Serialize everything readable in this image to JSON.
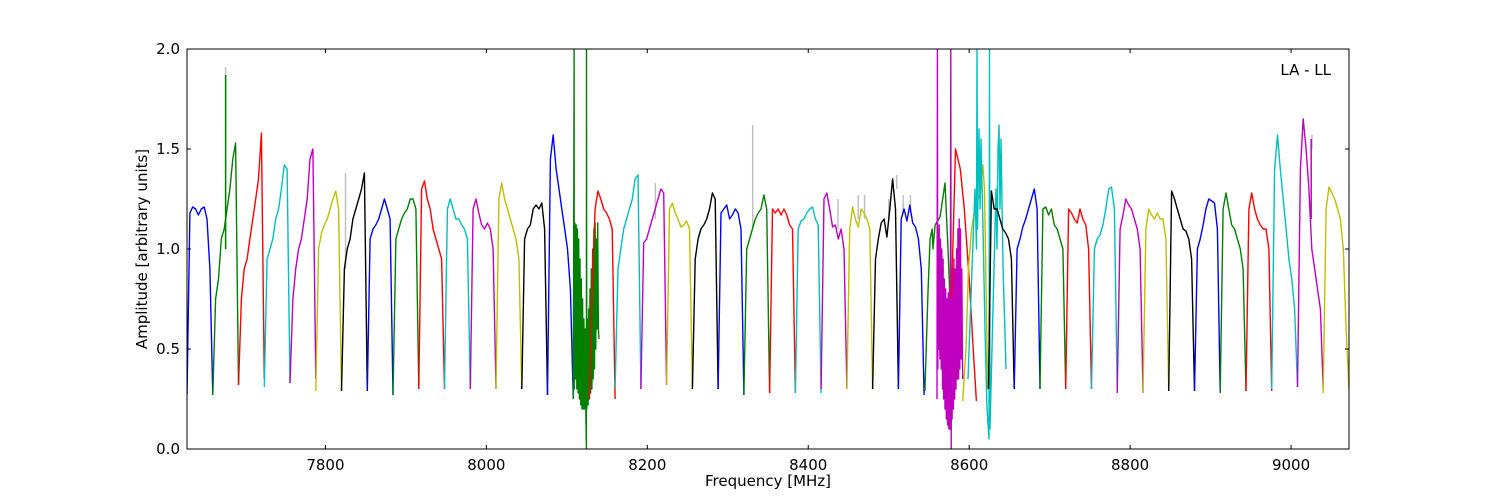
{
  "chart_data": {
    "type": "line",
    "title": "",
    "xlabel": "Frequency [MHz]",
    "ylabel": "Amplitude [arbitrary units]",
    "annotation": "LA - LL",
    "xlim": [
      7628,
      9072
    ],
    "ylim": [
      0.0,
      2.0
    ],
    "xticks": [
      7800,
      8000,
      8200,
      8400,
      8600,
      8800,
      9000
    ],
    "xtick_labels": [
      "7800",
      "8000",
      "8200",
      "8400",
      "8600",
      "8800",
      "9000"
    ],
    "yticks": [
      0.0,
      0.5,
      1.0,
      1.5,
      2.0
    ],
    "ytick_labels": [
      "0.0",
      "0.5",
      "1.0",
      "1.5",
      "2.0"
    ],
    "grid": false,
    "legend": "none",
    "subband_width_mhz": 32,
    "colors": {
      "b": "#0000ff",
      "g": "#008000",
      "r": "#ff0000",
      "c": "#00bfbf",
      "m": "#bf00bf",
      "y": "#bfbf00",
      "k": "#000000",
      "gray": "#c0c0c0"
    },
    "spikes": [
      {
        "freq": 7676,
        "from": 1.0,
        "to": 1.91,
        "color": "gray"
      },
      {
        "freq": 7676,
        "from": 1.0,
        "to": 1.87,
        "color": "g"
      },
      {
        "freq": 7825,
        "from": 0.9,
        "to": 1.38,
        "color": "gray"
      },
      {
        "freq": 8210,
        "from": 1.15,
        "to": 1.33,
        "color": "gray"
      },
      {
        "freq": 8331,
        "from": 1.1,
        "to": 1.62,
        "color": "gray"
      },
      {
        "freq": 8437,
        "from": 1.1,
        "to": 1.25,
        "color": "gray"
      },
      {
        "freq": 8462,
        "from": 1.15,
        "to": 1.27,
        "color": "gray"
      },
      {
        "freq": 8470,
        "from": 1.15,
        "to": 1.27,
        "color": "gray"
      },
      {
        "freq": 8500,
        "from": 1.15,
        "to": 1.25,
        "color": "gray"
      },
      {
        "freq": 8510,
        "from": 1.3,
        "to": 1.37,
        "color": "gray"
      },
      {
        "freq": 8518,
        "from": 1.18,
        "to": 1.27,
        "color": "gray"
      },
      {
        "freq": 8527,
        "from": 1.18,
        "to": 1.27,
        "color": "gray"
      },
      {
        "freq": 9026,
        "from": 1.5,
        "to": 1.57,
        "color": "gray"
      },
      {
        "freq": 9025,
        "from": 1.15,
        "to": 1.55,
        "color": "m"
      }
    ],
    "series": [
      {
        "color": "b",
        "start": 7628,
        "y": [
          0.27,
          1.18,
          1.21,
          1.2,
          1.17,
          1.2,
          1.21,
          1.15,
          0.9,
          0.27
        ]
      },
      {
        "color": "g",
        "start": 7660,
        "y": [
          0.27,
          0.75,
          0.85,
          1.05,
          1.1,
          1.2,
          1.3,
          1.45,
          1.53,
          0.32
        ]
      },
      {
        "color": "r",
        "start": 7692,
        "y": [
          0.32,
          0.75,
          0.9,
          0.95,
          1.05,
          1.15,
          1.25,
          1.35,
          1.58,
          0.35
        ]
      },
      {
        "color": "c",
        "start": 7724,
        "y": [
          0.31,
          0.95,
          1.0,
          1.05,
          1.15,
          1.2,
          1.3,
          1.42,
          1.4,
          0.33
        ]
      },
      {
        "color": "m",
        "start": 7756,
        "y": [
          0.33,
          0.75,
          0.9,
          1.0,
          1.05,
          1.15,
          1.25,
          1.45,
          1.5,
          0.35
        ]
      },
      {
        "color": "y",
        "start": 7788,
        "y": [
          0.29,
          1.0,
          1.08,
          1.12,
          1.15,
          1.2,
          1.25,
          1.29,
          1.2,
          0.29
        ]
      },
      {
        "color": "k",
        "start": 7820,
        "y": [
          0.29,
          0.9,
          1.0,
          1.05,
          1.15,
          1.2,
          1.25,
          1.3,
          1.38,
          0.29
        ]
      },
      {
        "color": "b",
        "start": 7852,
        "y": [
          0.29,
          1.05,
          1.1,
          1.12,
          1.15,
          1.2,
          1.25,
          1.2,
          1.15,
          0.27
        ]
      },
      {
        "color": "g",
        "start": 7884,
        "y": [
          0.27,
          1.05,
          1.1,
          1.15,
          1.18,
          1.2,
          1.25,
          1.25,
          1.2,
          0.3
        ]
      },
      {
        "color": "r",
        "start": 7916,
        "y": [
          0.3,
          1.3,
          1.34,
          1.25,
          1.2,
          1.1,
          1.05,
          1.0,
          0.95,
          0.3
        ]
      },
      {
        "color": "c",
        "start": 7948,
        "y": [
          0.3,
          1.2,
          1.25,
          1.2,
          1.15,
          1.15,
          1.12,
          1.1,
          1.05,
          0.3
        ]
      },
      {
        "color": "m",
        "start": 7980,
        "y": [
          0.3,
          1.2,
          1.25,
          1.18,
          1.12,
          1.1,
          1.13,
          1.1,
          1.0,
          0.3
        ]
      },
      {
        "color": "y",
        "start": 8012,
        "y": [
          0.3,
          1.25,
          1.33,
          1.25,
          1.2,
          1.15,
          1.1,
          1.05,
          0.95,
          0.3
        ]
      },
      {
        "color": "k",
        "start": 8044,
        "y": [
          0.3,
          1.05,
          1.1,
          1.12,
          1.2,
          1.22,
          1.2,
          1.23,
          1.1,
          0.27
        ]
      },
      {
        "color": "b",
        "start": 8076,
        "y": [
          0.27,
          1.45,
          1.57,
          1.4,
          1.3,
          1.2,
          1.1,
          1.0,
          0.8,
          0.25
        ]
      },
      {
        "color": "g",
        "x": [
          8108,
          8108.6,
          8109,
          8109.3,
          8110,
          8110.8,
          8111.6,
          8112.4,
          8113.2,
          8114,
          8114.8,
          8115.6,
          8116.4,
          8117.2,
          8118,
          8118.8,
          8119.6,
          8120.4,
          8121.2,
          8122,
          8122.8,
          8123.6,
          8124.3,
          8124.5,
          8124.8,
          8125.6,
          8126.4,
          8127.2,
          8128,
          8128.8,
          8129.6,
          8130.4,
          8131.2,
          8132,
          8132.8,
          8133.6,
          8134.4,
          8135.2,
          8136,
          8136.8,
          8137.6,
          8138.4,
          8139.2,
          8140
        ],
        "y": [
          0.25,
          1.1,
          2.0,
          0.3,
          1.13,
          0.35,
          1.12,
          0.3,
          1.1,
          0.28,
          1.05,
          0.25,
          0.95,
          0.22,
          0.85,
          0.2,
          0.75,
          0.2,
          0.65,
          0.2,
          0.6,
          0.2,
          0.0,
          2.0,
          0.2,
          0.65,
          0.22,
          0.7,
          0.25,
          0.8,
          0.28,
          0.9,
          0.3,
          1.0,
          0.35,
          1.1,
          0.4,
          1.13,
          0.5,
          1.05,
          0.6,
          1.13,
          0.6,
          0.55
        ]
      },
      {
        "color": "r",
        "start": 8128,
        "y": [
          0.25,
          0.8,
          1.2,
          1.29,
          1.25,
          1.2,
          1.18,
          1.15,
          1.1,
          0.25
        ]
      },
      {
        "color": "c",
        "start": 8160,
        "y": [
          0.31,
          0.9,
          1.0,
          1.1,
          1.15,
          1.2,
          1.25,
          1.35,
          1.37,
          0.3
        ]
      },
      {
        "color": "m",
        "start": 8192,
        "y": [
          0.3,
          1.03,
          1.05,
          1.1,
          1.15,
          1.2,
          1.25,
          1.3,
          1.28,
          0.32
        ]
      },
      {
        "color": "y",
        "start": 8224,
        "y": [
          0.32,
          1.2,
          1.23,
          1.18,
          1.15,
          1.11,
          1.12,
          1.14,
          1.1,
          0.3
        ]
      },
      {
        "color": "k",
        "start": 8256,
        "y": [
          0.3,
          0.95,
          1.05,
          1.1,
          1.12,
          1.15,
          1.2,
          1.28,
          1.25,
          0.3
        ]
      },
      {
        "color": "b",
        "start": 8288,
        "y": [
          0.3,
          1.18,
          1.2,
          1.22,
          1.15,
          1.17,
          1.2,
          1.18,
          1.1,
          0.27
        ]
      },
      {
        "color": "g",
        "start": 8320,
        "y": [
          0.27,
          1.0,
          1.05,
          1.1,
          1.15,
          1.18,
          1.2,
          1.27,
          1.2,
          0.28
        ]
      },
      {
        "color": "r",
        "start": 8352,
        "y": [
          0.28,
          1.2,
          1.18,
          1.2,
          1.17,
          1.2,
          1.17,
          1.12,
          1.1,
          0.28
        ]
      },
      {
        "color": "c",
        "start": 8384,
        "y": [
          0.28,
          1.1,
          1.14,
          1.15,
          1.18,
          1.2,
          1.21,
          1.15,
          1.12,
          0.28
        ]
      },
      {
        "color": "m",
        "start": 8416,
        "y": [
          0.3,
          1.25,
          1.28,
          1.2,
          1.11,
          1.12,
          1.05,
          1.1,
          1.0,
          0.3
        ]
      },
      {
        "color": "y",
        "start": 8448,
        "y": [
          0.3,
          1.1,
          1.21,
          1.15,
          1.11,
          1.2,
          1.18,
          1.15,
          1.1,
          0.3
        ]
      },
      {
        "color": "k",
        "start": 8480,
        "y": [
          0.3,
          0.95,
          1.05,
          1.13,
          1.15,
          1.06,
          1.2,
          1.35,
          1.2,
          0.3
        ]
      },
      {
        "color": "b",
        "start": 8512,
        "y": [
          0.3,
          1.15,
          1.2,
          1.14,
          1.22,
          1.13,
          1.11,
          1.05,
          0.9,
          0.27
        ]
      },
      {
        "color": "g",
        "x": [
          8545,
          8549,
          8551.4,
          8554,
          8555,
          8557.6,
          8563.8,
          8570,
          8573.7,
          8576
        ],
        "y": [
          0.29,
          0.8,
          1.05,
          1.1,
          1.0,
          1.12,
          1.16,
          1.33,
          1.0,
          0.76
        ]
      },
      {
        "color": "m",
        "x": [
          8560,
          8560.5,
          8561,
          8561.5,
          8562,
          8562.8,
          8563.6,
          8564.4,
          8565.2,
          8566,
          8566.8,
          8567.6,
          8568.4,
          8569.2,
          8570,
          8570.8,
          8571.6,
          8572.4,
          8573.2,
          8574,
          8574.8,
          8575.6,
          8576.4,
          8577.2,
          8577.6,
          8578,
          8578.8,
          8579.6,
          8580.4,
          8581.2,
          8582,
          8582.8,
          8583.6,
          8584.4,
          8585.2,
          8586,
          8586.8,
          8587.6,
          8588.4,
          8589.2,
          8590,
          8590.8,
          8591.6,
          8592
        ],
        "y": [
          0.25,
          2.0,
          0.4,
          1.1,
          0.5,
          1.12,
          0.45,
          1.05,
          0.4,
          1.0,
          0.3,
          0.95,
          0.25,
          0.85,
          0.2,
          0.8,
          0.15,
          0.75,
          0.12,
          0.78,
          0.1,
          0.8,
          0.1,
          2.0,
          0.0,
          0.85,
          0.15,
          0.9,
          0.2,
          0.95,
          0.25,
          0.9,
          0.3,
          1.0,
          0.35,
          1.1,
          0.35,
          1.15,
          0.4,
          1.1,
          0.45,
          0.9,
          0.5,
          0.35
        ]
      },
      {
        "color": "r",
        "x": [
          8578,
          8583,
          8586,
          8589,
          8594,
          8600,
          8605,
          8609
        ],
        "y": [
          0.75,
          1.5,
          1.45,
          1.4,
          1.2,
          0.85,
          0.5,
          0.24
        ]
      },
      {
        "color": "y",
        "x": [
          8592,
          8596,
          8599,
          8603,
          8607,
          8611,
          8614,
          8617,
          8619,
          8621,
          8623
        ],
        "y": [
          0.24,
          0.5,
          0.9,
          1.1,
          1.2,
          1.25,
          1.28,
          1.42,
          1.3,
          0.8,
          0.3
        ]
      },
      {
        "color": "c",
        "x": [
          8598.5,
          8603.5,
          8607.2,
          8609.1,
          8609.7,
          8610.3,
          8612.2,
          8613.4,
          8614.7,
          8617.2,
          8619.7,
          8622.2,
          8624.6,
          8625.3,
          8625.9,
          8628.4,
          8630.9,
          8633.3,
          8634.6,
          8635.8,
          8637.1,
          8638.3,
          8639.6,
          8642.1,
          8645.8
        ],
        "y": [
          0.35,
          0.9,
          1.3,
          1.0,
          2.0,
          1.1,
          1.6,
          1.2,
          1.55,
          1.1,
          0.6,
          0.2,
          0.05,
          2.0,
          0.1,
          0.5,
          0.9,
          1.3,
          1.0,
          1.5,
          1.62,
          1.2,
          1.55,
          0.9,
          0.4
        ]
      },
      {
        "color": "k",
        "start": 8624,
        "y": [
          0.3,
          1.29,
          1.2,
          1.2,
          1.15,
          1.1,
          1.08,
          1.05,
          0.95,
          0.3
        ]
      },
      {
        "color": "b",
        "start": 8656,
        "y": [
          0.3,
          1.0,
          1.05,
          1.11,
          1.15,
          1.2,
          1.25,
          1.3,
          1.2,
          0.3
        ]
      },
      {
        "color": "g",
        "start": 8688,
        "y": [
          0.3,
          1.2,
          1.21,
          1.17,
          1.2,
          1.12,
          1.1,
          1.05,
          1.0,
          0.3
        ]
      },
      {
        "color": "r",
        "start": 8720,
        "y": [
          0.3,
          1.2,
          1.18,
          1.15,
          1.13,
          1.2,
          1.15,
          1.12,
          1.0,
          0.3
        ]
      },
      {
        "color": "c",
        "start": 8752,
        "y": [
          0.3,
          1.0,
          1.05,
          1.07,
          1.12,
          1.2,
          1.3,
          1.31,
          1.2,
          0.3
        ]
      },
      {
        "color": "m",
        "start": 8784,
        "y": [
          0.28,
          1.1,
          1.17,
          1.25,
          1.22,
          1.2,
          1.15,
          1.1,
          1.0,
          0.28
        ]
      },
      {
        "color": "y",
        "start": 8816,
        "y": [
          0.28,
          1.1,
          1.2,
          1.17,
          1.15,
          1.18,
          1.15,
          1.15,
          1.05,
          0.29
        ]
      },
      {
        "color": "k",
        "start": 8848,
        "y": [
          0.29,
          1.29,
          1.25,
          1.2,
          1.15,
          1.1,
          1.09,
          1.05,
          0.95,
          0.29
        ]
      },
      {
        "color": "b",
        "start": 8880,
        "y": [
          0.29,
          1.0,
          1.05,
          1.12,
          1.2,
          1.25,
          1.24,
          1.23,
          1.1,
          0.28
        ]
      },
      {
        "color": "g",
        "start": 8912,
        "y": [
          0.28,
          1.2,
          1.28,
          1.2,
          1.12,
          1.1,
          1.05,
          1.0,
          0.9,
          0.29
        ]
      },
      {
        "color": "r",
        "start": 8944,
        "y": [
          0.29,
          1.2,
          1.28,
          1.2,
          1.15,
          1.12,
          1.1,
          1.1,
          1.0,
          0.29
        ]
      },
      {
        "color": "c",
        "start": 8976,
        "y": [
          0.3,
          1.4,
          1.57,
          1.4,
          1.25,
          1.1,
          0.95,
          0.85,
          0.7,
          0.31
        ]
      },
      {
        "color": "m",
        "start": 9008,
        "y": [
          0.31,
          1.4,
          1.65,
          1.5,
          1.3,
          1.0,
          0.9,
          0.8,
          0.7,
          0.3
        ]
      },
      {
        "color": "y",
        "start": 9040,
        "y": [
          0.28,
          1.2,
          1.31,
          1.28,
          1.25,
          1.2,
          1.15,
          1.0,
          0.6,
          0.3
        ]
      }
    ]
  }
}
